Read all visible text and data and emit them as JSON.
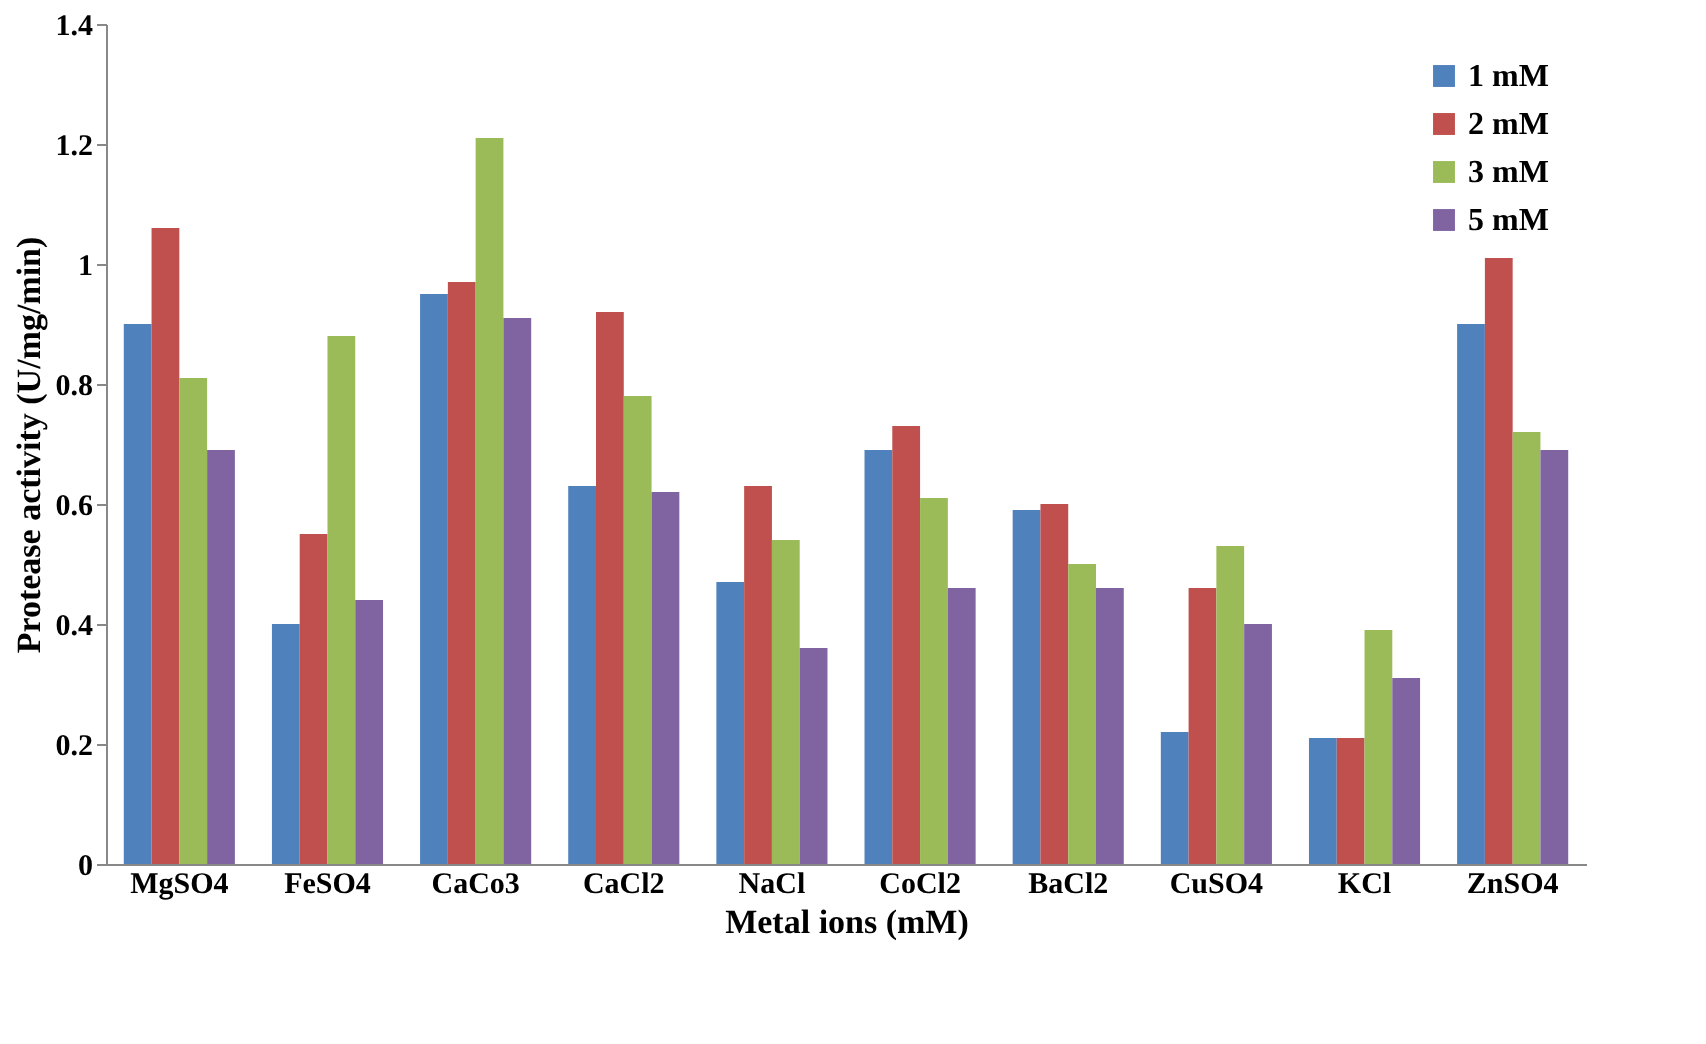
{
  "chart_data": {
    "type": "bar",
    "xlabel": "Metal ions (mM)",
    "ylabel": "Protease activity (U/mg/min)",
    "categories": [
      "MgSO4",
      "FeSO4",
      "CaCo3",
      "CaCl2",
      "NaCl",
      "CoCl2",
      "BaCl2",
      "CuSO4",
      "KCl",
      "ZnSO4"
    ],
    "series": [
      {
        "name": "1 mM",
        "color": "#4f81bd",
        "values": [
          0.9,
          0.4,
          0.95,
          0.63,
          0.47,
          0.69,
          0.59,
          0.22,
          0.21,
          0.9
        ]
      },
      {
        "name": "2 mM",
        "color": "#c0504d",
        "values": [
          1.06,
          0.55,
          0.97,
          0.92,
          0.63,
          0.73,
          0.6,
          0.46,
          0.21,
          1.01
        ]
      },
      {
        "name": "3 mM",
        "color": "#9bbb59",
        "values": [
          0.81,
          0.88,
          1.21,
          0.78,
          0.54,
          0.61,
          0.5,
          0.53,
          0.39,
          0.72
        ]
      },
      {
        "name": "5 mM",
        "color": "#8064a2",
        "values": [
          0.69,
          0.44,
          0.91,
          0.62,
          0.36,
          0.46,
          0.46,
          0.4,
          0.31,
          0.69
        ]
      }
    ],
    "ylim": [
      0,
      1.4
    ],
    "yticks": [
      0,
      0.2,
      0.4,
      0.6,
      0.8,
      1,
      1.2,
      1.4
    ],
    "grid": false,
    "legend": "top right"
  }
}
